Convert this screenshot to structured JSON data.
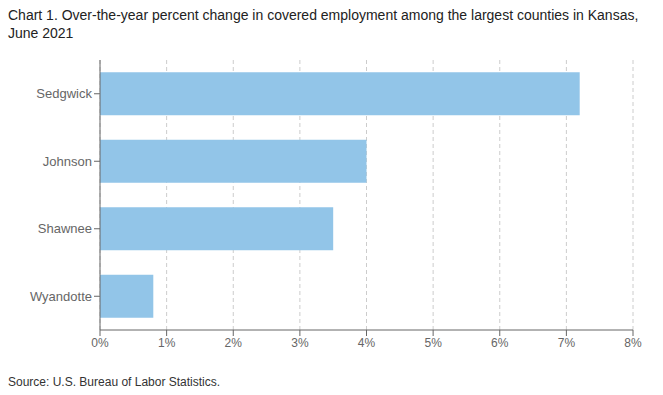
{
  "chart_data": {
    "type": "bar",
    "title": "Chart 1. Over-the-year percent change in covered employment among the largest counties in Kansas, June 2021",
    "source": "Source: U.S. Bureau of Labor Statistics.",
    "orientation": "horizontal",
    "categories": [
      "Wyandotte",
      "Shawnee",
      "Johnson",
      "Sedgwick"
    ],
    "values": [
      0.8,
      3.5,
      4.0,
      7.2
    ],
    "color": "#92C5E8",
    "xlim": [
      0,
      8
    ],
    "xticks": [
      {
        "value": 0,
        "label": "0%"
      },
      {
        "value": 1,
        "label": "1%"
      },
      {
        "value": 2,
        "label": "2%"
      },
      {
        "value": 3,
        "label": "3%"
      },
      {
        "value": 4,
        "label": "4%"
      },
      {
        "value": 5,
        "label": "5%"
      },
      {
        "value": 6,
        "label": "6%"
      },
      {
        "value": 7,
        "label": "7%"
      },
      {
        "value": 8,
        "label": "8%"
      }
    ],
    "grid": true
  }
}
